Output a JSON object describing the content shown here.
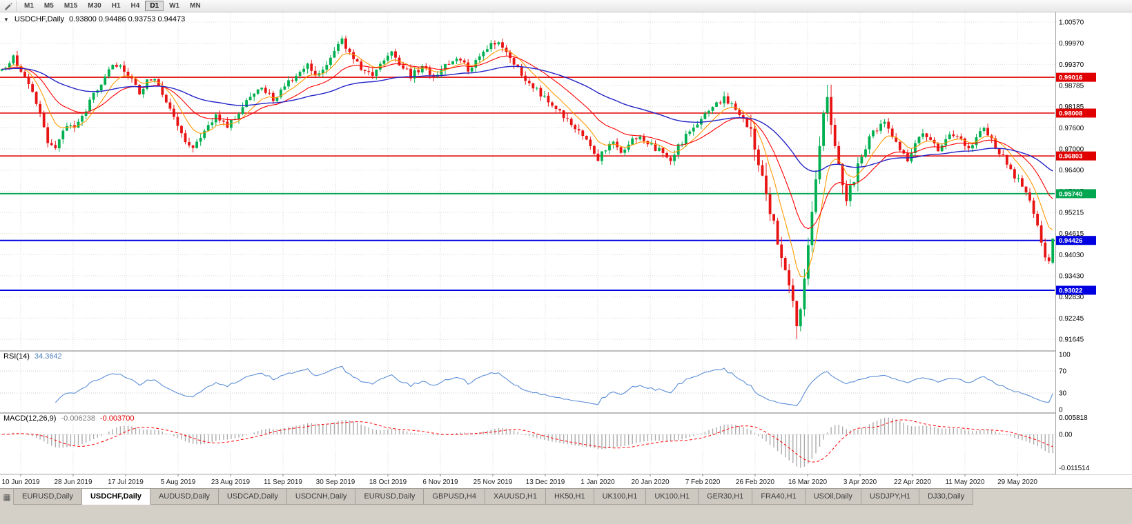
{
  "toolbar": {
    "timeframes": [
      "M1",
      "M5",
      "M15",
      "M30",
      "H1",
      "H4",
      "D1",
      "W1",
      "MN"
    ],
    "active": "D1"
  },
  "chart_data": {
    "type": "candlestick",
    "symbol": "USDCHF,Daily",
    "ohlc_label": "0.93800 0.94486 0.93753 0.94473",
    "last_candle": {
      "open": 0.938,
      "high": 0.94486,
      "low": 0.93753,
      "close": 0.94473
    },
    "up_color": "#00b050",
    "down_color": "#e81414",
    "price_axis": [
      "1.00570",
      "0.99970",
      "0.99370",
      "0.98785",
      "0.98185",
      "0.97600",
      "0.97000",
      "0.96400",
      "0.95815",
      "0.95215",
      "0.94615",
      "0.94030",
      "0.93430",
      "0.92830",
      "0.92245",
      "0.91645"
    ],
    "dates": [
      "10 Jun 2019",
      "28 Jun 2019",
      "17 Jul 2019",
      "5 Aug 2019",
      "23 Aug 2019",
      "11 Sep 2019",
      "30 Sep 2019",
      "18 Oct 2019",
      "6 Nov 2019",
      "25 Nov 2019",
      "13 Dec 2019",
      "1 Jan 2020",
      "20 Jan 2020",
      "7 Feb 2020",
      "26 Feb 2020",
      "16 Mar 2020",
      "3 Apr 2020",
      "22 Apr 2020",
      "11 May 2020",
      "29 May 2020"
    ],
    "candle_count": 276,
    "volatile_ranges": [
      [
        196,
        224
      ]
    ],
    "crash_spike": {
      "index": 208,
      "low": 0.9165
    },
    "price_path": [
      [
        0,
        0.992
      ],
      [
        3,
        0.9955
      ],
      [
        6,
        0.9898
      ],
      [
        9,
        0.9832
      ],
      [
        12,
        0.9718
      ],
      [
        14,
        0.97
      ],
      [
        17,
        0.9768
      ],
      [
        19,
        0.976
      ],
      [
        22,
        0.9812
      ],
      [
        25,
        0.9872
      ],
      [
        28,
        0.9922
      ],
      [
        30,
        0.9938
      ],
      [
        33,
        0.9905
      ],
      [
        36,
        0.9862
      ],
      [
        38,
        0.9892
      ],
      [
        40,
        0.9905
      ],
      [
        43,
        0.9835
      ],
      [
        46,
        0.9762
      ],
      [
        48,
        0.9722
      ],
      [
        50,
        0.9698
      ],
      [
        53,
        0.9758
      ],
      [
        56,
        0.9792
      ],
      [
        59,
        0.9762
      ],
      [
        62,
        0.9802
      ],
      [
        65,
        0.9852
      ],
      [
        68,
        0.9872
      ],
      [
        71,
        0.9842
      ],
      [
        74,
        0.9872
      ],
      [
        77,
        0.9912
      ],
      [
        80,
        0.9942
      ],
      [
        82,
        0.9902
      ],
      [
        85,
        0.9932
      ],
      [
        87,
        0.9972
      ],
      [
        89,
        1.0005
      ],
      [
        91,
        0.9972
      ],
      [
        94,
        0.9922
      ],
      [
        97,
        0.9902
      ],
      [
        100,
        0.9952
      ],
      [
        102,
        0.9982
      ],
      [
        104,
        0.9942
      ],
      [
        107,
        0.9905
      ],
      [
        110,
        0.9932
      ],
      [
        113,
        0.9898
      ],
      [
        116,
        0.9932
      ],
      [
        119,
        0.9962
      ],
      [
        122,
        0.9925
      ],
      [
        125,
        0.9958
      ],
      [
        128,
        0.9992
      ],
      [
        130,
        1.0002
      ],
      [
        133,
        0.9962
      ],
      [
        136,
        0.9912
      ],
      [
        139,
        0.9875
      ],
      [
        142,
        0.9842
      ],
      [
        145,
        0.9812
      ],
      [
        148,
        0.9786
      ],
      [
        151,
        0.9748
      ],
      [
        154,
        0.9705
      ],
      [
        156,
        0.9672
      ],
      [
        158,
        0.97
      ],
      [
        160,
        0.9722
      ],
      [
        162,
        0.9692
      ],
      [
        164,
        0.9715
      ],
      [
        167,
        0.9738
      ],
      [
        169,
        0.9718
      ],
      [
        172,
        0.9695
      ],
      [
        175,
        0.9672
      ],
      [
        178,
        0.9722
      ],
      [
        181,
        0.9758
      ],
      [
        184,
        0.9795
      ],
      [
        187,
        0.9825
      ],
      [
        189,
        0.9845
      ],
      [
        191,
        0.9822
      ],
      [
        194,
        0.9788
      ],
      [
        196,
        0.9742
      ],
      [
        198,
        0.9672
      ],
      [
        200,
        0.9575
      ],
      [
        202,
        0.948
      ],
      [
        204,
        0.9385
      ],
      [
        206,
        0.9295
      ],
      [
        208,
        0.9212
      ],
      [
        209,
        0.9268
      ],
      [
        210,
        0.9345
      ],
      [
        211,
        0.9438
      ],
      [
        212,
        0.9525
      ],
      [
        213,
        0.9615
      ],
      [
        214,
        0.9718
      ],
      [
        215,
        0.98
      ],
      [
        216,
        0.9835
      ],
      [
        217,
        0.979
      ],
      [
        218,
        0.9725
      ],
      [
        219,
        0.9655
      ],
      [
        220,
        0.96
      ],
      [
        221,
        0.9565
      ],
      [
        222,
        0.959
      ],
      [
        223,
        0.9625
      ],
      [
        225,
        0.9672
      ],
      [
        227,
        0.973
      ],
      [
        229,
        0.9758
      ],
      [
        231,
        0.9768
      ],
      [
        233,
        0.9738
      ],
      [
        235,
        0.9702
      ],
      [
        237,
        0.9672
      ],
      [
        239,
        0.9718
      ],
      [
        241,
        0.9748
      ],
      [
        243,
        0.9722
      ],
      [
        245,
        0.9695
      ],
      [
        247,
        0.9722
      ],
      [
        249,
        0.9745
      ],
      [
        251,
        0.9725
      ],
      [
        253,
        0.9705
      ],
      [
        255,
        0.9732
      ],
      [
        257,
        0.9755
      ],
      [
        259,
        0.9728
      ],
      [
        261,
        0.9692
      ],
      [
        263,
        0.9658
      ],
      [
        265,
        0.9625
      ],
      [
        267,
        0.9598
      ],
      [
        269,
        0.956
      ],
      [
        270,
        0.9522
      ],
      [
        271,
        0.9478
      ],
      [
        272,
        0.9432
      ],
      [
        273,
        0.9398
      ],
      [
        274,
        0.9378
      ],
      [
        275,
        0.9447
      ]
    ],
    "levels": [
      {
        "value": 0.99016,
        "label": "0.99016",
        "color": "#e00000",
        "width": 1.6
      },
      {
        "value": 0.98008,
        "label": "0.98008",
        "color": "#e00000",
        "width": 1.6
      },
      {
        "value": 0.96803,
        "label": "0.96803",
        "color": "#e00000",
        "width": 1.6
      },
      {
        "value": 0.9574,
        "label": "0.95740",
        "color": "#00a650",
        "width": 2
      },
      {
        "value": 0.94426,
        "label": "0.94426",
        "color": "#0000e0",
        "width": 2
      },
      {
        "value": 0.93022,
        "label": "0.93022",
        "color": "#0000e0",
        "width": 2
      }
    ],
    "moving_averages": [
      {
        "name": "ma-fast",
        "period": 8,
        "color": "#ff9900",
        "width": 1.1
      },
      {
        "name": "ma-medium",
        "period": 20,
        "color": "#ff0000",
        "width": 1.1
      },
      {
        "name": "ma-slow",
        "period": 60,
        "color": "#2323c8",
        "width": 1.4
      }
    ]
  },
  "rsi": {
    "name": "RSI(14)",
    "value": "34.3642",
    "period": 14,
    "axis": [
      "100",
      "70",
      "30",
      "0"
    ],
    "levels": [
      70,
      30
    ],
    "color": "#5b8ed6"
  },
  "macd": {
    "name": "MACD(12,26,9)",
    "main_value": "-0.006238",
    "signal_value": "-0.003700",
    "axis_top": "0.005818",
    "axis_zero": "0.00",
    "axis_bottom": "-0.011514",
    "bar_color": "#ababab",
    "signal_color": "#ff0000"
  },
  "tabs": {
    "active_index": 1,
    "items": [
      "EURUSD,Daily",
      "USDCHF,Daily",
      "AUDUSD,Daily",
      "USDCAD,Daily",
      "USDCNH,Daily",
      "EURUSD,Daily",
      "GBPUSD,H4",
      "XAUUSD,H1",
      "HK50,H1",
      "UK100,H1",
      "UK100,H1",
      "GER30,H1",
      "FRA40,H1",
      "USOil,Daily",
      "USDJPY,H1",
      "DJ30,Daily"
    ]
  }
}
